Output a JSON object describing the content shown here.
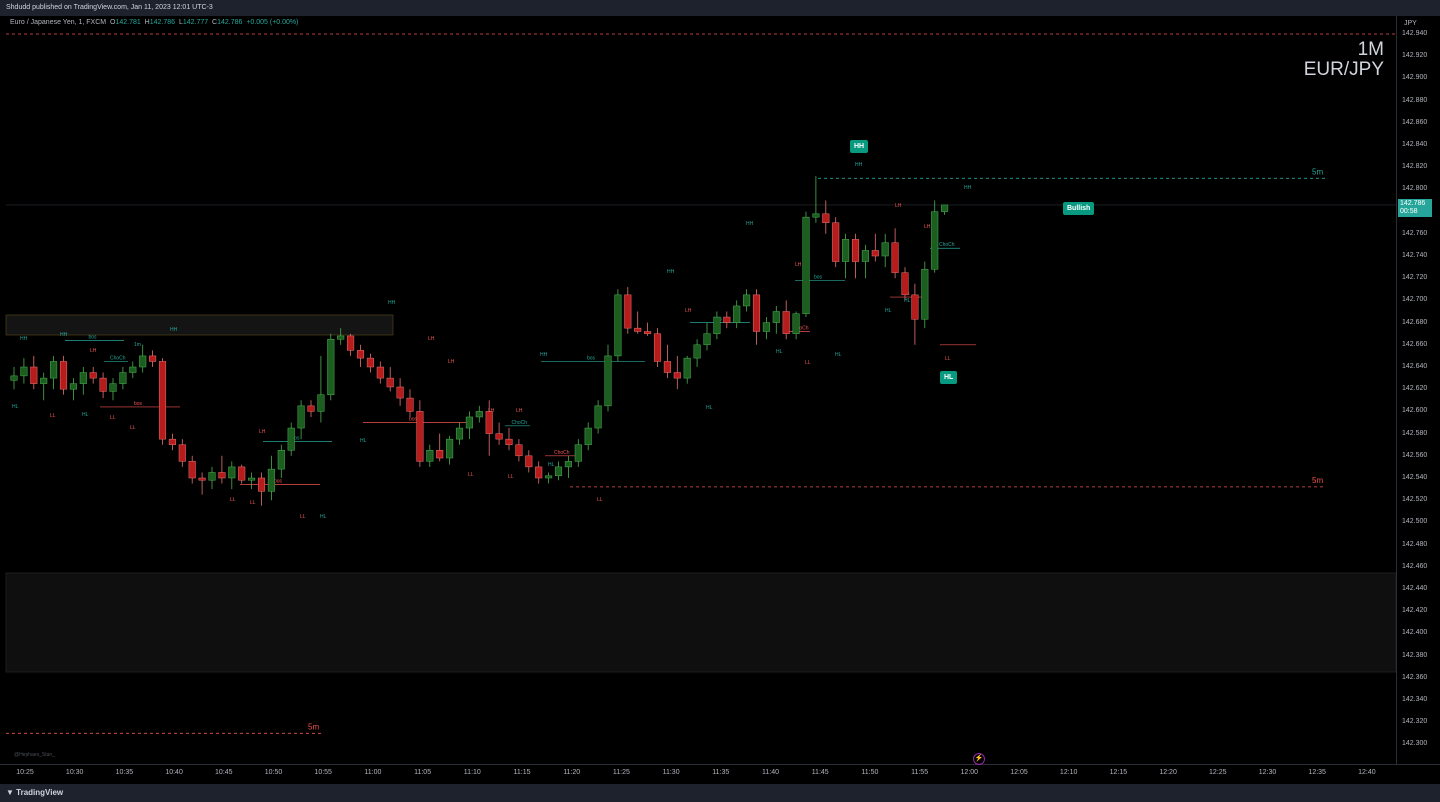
{
  "publisher": "Shdudd published on TradingView.com, Jan 11, 2023 12:01 UTC-3",
  "legend": {
    "symbol": "Euro / Japanese Yen, 1, FXCM",
    "o_label": "O",
    "o": "142.781",
    "h_label": "H",
    "h": "142.786",
    "l_label": "L",
    "l": "142.777",
    "c_label": "C",
    "c": "142.786",
    "change": "+0.005 (+0.00%)"
  },
  "watermark": {
    "timeframe": "1M",
    "pair": "EUR/JPY"
  },
  "currency": "JPY",
  "price_tag": {
    "price": "142.786",
    "countdown": "00:58"
  },
  "badges": {
    "hh": "HH",
    "hl": "HL",
    "bullish": "Bullish"
  },
  "htf_labels": [
    "5m",
    "5m",
    "5m"
  ],
  "credit": "@Hephaes_Stan_",
  "brand": "TradingView",
  "colors": {
    "bull": "#26a69a",
    "bear": "#ef5350",
    "candle_bull": "#1b5e20",
    "candle_bear": "#b71c1c",
    "badge": "#089981"
  },
  "chart_data": {
    "type": "candlestick",
    "symbol": "EUR/JPY",
    "ylim": [
      142.29,
      142.945
    ],
    "price_ticks": [
      "142.940",
      "142.920",
      "142.900",
      "142.880",
      "142.860",
      "142.840",
      "142.820",
      "142.800",
      "142.780",
      "142.760",
      "142.740",
      "142.720",
      "142.700",
      "142.680",
      "142.660",
      "142.640",
      "142.620",
      "142.600",
      "142.580",
      "142.560",
      "142.540",
      "142.520",
      "142.500",
      "142.480",
      "142.460",
      "142.440",
      "142.420",
      "142.400",
      "142.380",
      "142.360",
      "142.340",
      "142.320",
      "142.300"
    ],
    "time_ticks": [
      "10:25",
      "10:30",
      "10:35",
      "10:40",
      "10:45",
      "10:50",
      "10:55",
      "11:00",
      "11:05",
      "11:10",
      "11:15",
      "11:20",
      "11:25",
      "11:30",
      "11:35",
      "11:40",
      "11:45",
      "11:50",
      "11:55",
      "12:00",
      "12:05",
      "12:10",
      "12:15",
      "12:20",
      "12:25",
      "12:30",
      "12:35",
      "12:40"
    ],
    "levels": [
      {
        "label": "",
        "price": 142.94,
        "kind": "bear"
      },
      {
        "label": "5m",
        "price": 142.81,
        "kind": "bull"
      },
      {
        "label": "5m",
        "price": 142.532,
        "kind": "bear"
      },
      {
        "label": "5m",
        "price": 142.31,
        "kind": "bear"
      }
    ],
    "candles": [
      [
        142.628,
        142.64,
        142.62,
        142.632
      ],
      [
        142.632,
        142.648,
        142.625,
        142.64
      ],
      [
        142.64,
        142.65,
        142.62,
        142.625
      ],
      [
        142.625,
        142.635,
        142.61,
        142.63
      ],
      [
        142.63,
        142.65,
        142.62,
        142.645
      ],
      [
        142.645,
        142.65,
        142.615,
        142.62
      ],
      [
        142.62,
        142.63,
        142.61,
        142.625
      ],
      [
        142.625,
        142.64,
        142.615,
        142.635
      ],
      [
        142.635,
        142.64,
        142.625,
        142.63
      ],
      [
        142.63,
        142.635,
        142.612,
        142.618
      ],
      [
        142.618,
        142.63,
        142.61,
        142.625
      ],
      [
        142.625,
        142.64,
        142.62,
        142.635
      ],
      [
        142.635,
        142.645,
        142.63,
        142.64
      ],
      [
        142.64,
        142.66,
        142.635,
        142.65
      ],
      [
        142.65,
        142.655,
        142.64,
        142.645
      ],
      [
        142.645,
        142.648,
        142.57,
        142.575
      ],
      [
        142.575,
        142.58,
        142.565,
        142.57
      ],
      [
        142.57,
        142.575,
        142.55,
        142.555
      ],
      [
        142.555,
        142.56,
        142.535,
        142.54
      ],
      [
        142.54,
        142.545,
        142.525,
        142.538
      ],
      [
        142.538,
        142.55,
        142.53,
        142.545
      ],
      [
        142.545,
        142.56,
        142.535,
        142.54
      ],
      [
        142.54,
        142.555,
        142.53,
        142.55
      ],
      [
        142.55,
        142.552,
        142.535,
        142.538
      ],
      [
        142.538,
        142.545,
        142.53,
        142.54
      ],
      [
        142.54,
        142.545,
        142.515,
        142.528
      ],
      [
        142.528,
        142.56,
        142.52,
        142.548
      ],
      [
        142.548,
        142.57,
        142.54,
        142.565
      ],
      [
        142.565,
        142.59,
        142.56,
        142.585
      ],
      [
        142.585,
        142.61,
        142.575,
        142.605
      ],
      [
        142.605,
        142.61,
        142.595,
        142.6
      ],
      [
        142.6,
        142.65,
        142.59,
        142.615
      ],
      [
        142.615,
        142.67,
        142.61,
        142.665
      ],
      [
        142.665,
        142.675,
        142.66,
        142.668
      ],
      [
        142.668,
        142.67,
        142.65,
        142.655
      ],
      [
        142.655,
        142.66,
        142.64,
        142.648
      ],
      [
        142.648,
        142.652,
        142.635,
        142.64
      ],
      [
        142.64,
        142.645,
        142.625,
        142.63
      ],
      [
        142.63,
        142.64,
        142.618,
        142.622
      ],
      [
        142.622,
        142.63,
        142.605,
        142.612
      ],
      [
        142.612,
        142.62,
        142.595,
        142.6
      ],
      [
        142.6,
        142.61,
        142.55,
        142.555
      ],
      [
        142.555,
        142.57,
        142.55,
        142.565
      ],
      [
        142.565,
        142.58,
        142.555,
        142.558
      ],
      [
        142.558,
        142.578,
        142.552,
        142.575
      ],
      [
        142.575,
        142.59,
        142.57,
        142.585
      ],
      [
        142.585,
        142.6,
        142.575,
        142.595
      ],
      [
        142.595,
        142.605,
        142.59,
        142.6
      ],
      [
        142.6,
        142.61,
        142.56,
        142.58
      ],
      [
        142.58,
        142.59,
        142.57,
        142.575
      ],
      [
        142.575,
        142.585,
        142.565,
        142.57
      ],
      [
        142.57,
        142.575,
        142.555,
        142.56
      ],
      [
        142.56,
        142.565,
        142.545,
        142.55
      ],
      [
        142.55,
        142.555,
        142.535,
        142.54
      ],
      [
        142.54,
        142.545,
        142.535,
        142.542
      ],
      [
        142.542,
        142.555,
        142.538,
        142.55
      ],
      [
        142.55,
        142.56,
        142.54,
        142.555
      ],
      [
        142.555,
        142.575,
        142.55,
        142.57
      ],
      [
        142.57,
        142.59,
        142.565,
        142.585
      ],
      [
        142.585,
        142.61,
        142.58,
        142.605
      ],
      [
        142.605,
        142.66,
        142.6,
        142.65
      ],
      [
        142.65,
        142.71,
        142.645,
        142.705
      ],
      [
        142.705,
        142.712,
        142.67,
        142.675
      ],
      [
        142.675,
        142.69,
        142.67,
        142.672
      ],
      [
        142.672,
        142.68,
        142.668,
        142.67
      ],
      [
        142.67,
        142.675,
        142.64,
        142.645
      ],
      [
        142.645,
        142.66,
        142.63,
        142.635
      ],
      [
        142.635,
        142.65,
        142.62,
        142.63
      ],
      [
        142.63,
        142.65,
        142.625,
        142.648
      ],
      [
        142.648,
        142.665,
        142.64,
        142.66
      ],
      [
        142.66,
        142.68,
        142.655,
        142.67
      ],
      [
        142.67,
        142.69,
        142.665,
        142.685
      ],
      [
        142.685,
        142.69,
        142.675,
        142.68
      ],
      [
        142.68,
        142.7,
        142.675,
        142.695
      ],
      [
        142.695,
        142.71,
        142.69,
        142.705
      ],
      [
        142.705,
        142.71,
        142.66,
        142.672
      ],
      [
        142.672,
        142.685,
        142.665,
        142.68
      ],
      [
        142.68,
        142.695,
        142.67,
        142.69
      ],
      [
        142.69,
        142.7,
        142.665,
        142.67
      ],
      [
        142.67,
        142.69,
        142.665,
        142.688
      ],
      [
        142.688,
        142.78,
        142.685,
        142.775
      ],
      [
        142.775,
        142.812,
        142.77,
        142.778
      ],
      [
        142.778,
        142.79,
        142.76,
        142.77
      ],
      [
        142.77,
        142.775,
        142.73,
        142.735
      ],
      [
        142.735,
        142.76,
        142.72,
        142.755
      ],
      [
        142.755,
        142.76,
        142.72,
        142.735
      ],
      [
        142.735,
        142.75,
        142.72,
        142.745
      ],
      [
        142.745,
        142.76,
        142.735,
        142.74
      ],
      [
        142.74,
        142.76,
        142.73,
        142.752
      ],
      [
        142.752,
        142.765,
        142.72,
        142.725
      ],
      [
        142.725,
        142.73,
        142.7,
        142.705
      ],
      [
        142.705,
        142.715,
        142.66,
        142.683
      ],
      [
        142.683,
        142.735,
        142.675,
        142.728
      ],
      [
        142.728,
        142.79,
        142.725,
        142.78
      ],
      [
        142.78,
        142.786,
        142.777,
        142.786
      ]
    ],
    "structure_labels": [
      {
        "text": "HH",
        "kind": "bull"
      },
      {
        "text": "LH",
        "kind": "bear"
      },
      {
        "text": "HL",
        "kind": "bull"
      },
      {
        "text": "LL",
        "kind": "bear"
      },
      {
        "text": "bos",
        "kind": "bull"
      },
      {
        "text": "bos",
        "kind": "bear"
      },
      {
        "text": "ChoCh",
        "kind": "bull"
      },
      {
        "text": "ChoCh",
        "kind": "bear"
      },
      {
        "text": "1m",
        "kind": "bull"
      }
    ]
  }
}
